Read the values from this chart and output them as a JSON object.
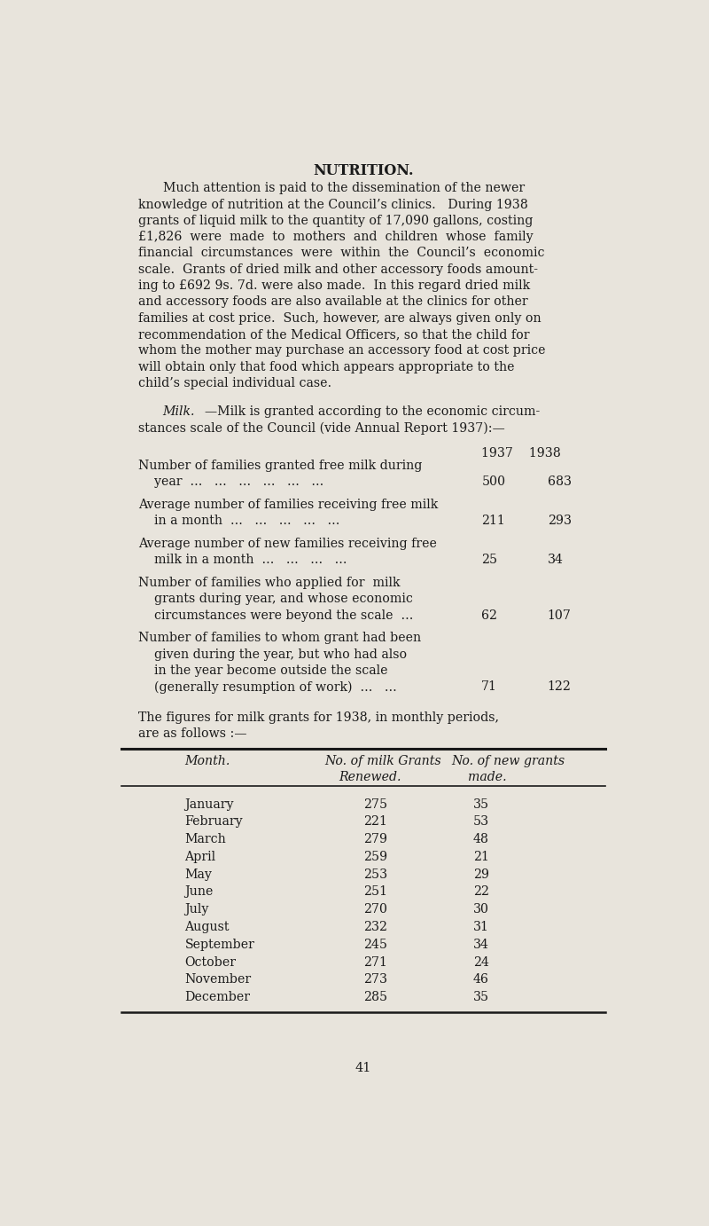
{
  "bg_color": "#e8e4dc",
  "text_color": "#1a1a1a",
  "page_number": "41",
  "title": "NUTRITION.",
  "p1_lines": [
    "Much attention is paid to the dissemination of the newer",
    "knowledge of nutrition at the Council’s clinics.   During 1938",
    "grants of liquid milk to the quantity of 17,090 gallons, costing",
    "£1,826  were  made  to  mothers  and  children  whose  family",
    "financial  circumstances  were  within  the  Council’s  economic",
    "scale.  Grants of dried milk and other accessory foods amount-",
    "ing to £692 9s. 7d. were also made.  In this regard dried milk",
    "and accessory foods are also available at the clinics for other",
    "families at cost price.  Such, however, are always given only on",
    "recommendation of the Medical Officers, so that the child for",
    "whom the mother may purchase an accessory food at cost price",
    "will obtain only that food which appears appropriate to the",
    "child’s special individual case."
  ],
  "milk_italic": "Milk.",
  "milk_rest": "—Milk is granted according to the economic circum-",
  "milk_line2": "stances scale of the Council (vide Annual Report 1937):—",
  "years_header": "1937    1938",
  "stats": [
    {
      "lines": [
        "Number of families granted free milk during",
        "    year  ...   ...   ...   ...   ...   ..."
      ],
      "v1937": "500",
      "v1938": "683"
    },
    {
      "lines": [
        "Average number of families receiving free milk",
        "    in a month  ...   ...   ...   ...   ..."
      ],
      "v1937": "211",
      "v1938": "293"
    },
    {
      "lines": [
        "Average number of new families receiving free",
        "    milk in a month  ...   ...   ...   ..."
      ],
      "v1937": "25",
      "v1938": "34"
    },
    {
      "lines": [
        "Number of families who applied for  milk",
        "    grants during year, and whose economic",
        "    circumstances were beyond the scale  ..."
      ],
      "v1937": "62",
      "v1938": "107"
    },
    {
      "lines": [
        "Number of families to whom grant had been",
        "    given during the year, but who had also",
        "    in the year become outside the scale",
        "    (generally resumption of work)  ...   ..."
      ],
      "v1937": "71",
      "v1938": "122"
    }
  ],
  "table_intro_lines": [
    "The figures for milk grants for 1938, in monthly periods,",
    "are as follows :—"
  ],
  "col_hdr1_month": "Month.",
  "col_hdr1_renewed": "No. of milk Grants",
  "col_hdr1_new": "No. of new grants",
  "col_hdr2_renewed": "Renewed.",
  "col_hdr2_new": "made.",
  "months": [
    "January",
    "February",
    "March",
    "April",
    "May",
    "June",
    "July",
    "August",
    "September",
    "October",
    "November",
    "December"
  ],
  "grants_renewed": [
    275,
    221,
    279,
    259,
    253,
    251,
    270,
    232,
    245,
    271,
    273,
    285
  ],
  "new_grants": [
    35,
    53,
    48,
    21,
    29,
    22,
    30,
    31,
    34,
    24,
    46,
    35
  ]
}
